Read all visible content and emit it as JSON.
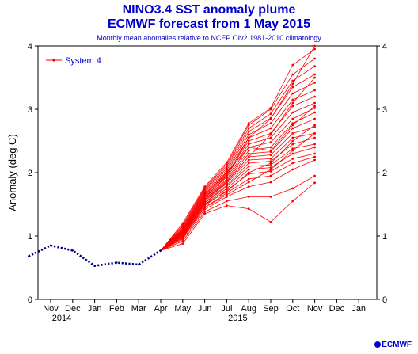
{
  "header": {
    "title": "NINO3.4 SST anomaly plume",
    "subtitle_forecast": "ECMWF forecast from 1 May 2015",
    "note": "Monthly mean anomalies relative to NCEP OIv2 1981-2010 climatology"
  },
  "logo": {
    "text": "ECMWF"
  },
  "colors": {
    "title": "#0000cc",
    "forecast": "#ff0000",
    "observed": "#000080"
  },
  "chart_data": {
    "type": "line",
    "title": "NINO3.4 SST anomaly plume",
    "ylabel": "Anomaly (deg C)",
    "xlabel": "",
    "ylim": [
      0,
      4
    ],
    "y_ticks": [
      0,
      1,
      2,
      3,
      4
    ],
    "grid": false,
    "legend_position": "top-left",
    "x_ticks": [
      "Nov",
      "Dec",
      "Jan",
      "Feb",
      "Mar",
      "Apr",
      "May",
      "Jun",
      "Jul",
      "Aug",
      "Sep",
      "Oct",
      "Nov",
      "Dec",
      "Jan"
    ],
    "x_years": [
      {
        "label": "2014",
        "at": "Nov 2014"
      },
      {
        "label": "2015",
        "at": "Jul 2015"
      }
    ],
    "observed": {
      "x": [
        "Oct 2014",
        "Nov 2014",
        "Dec 2014",
        "Jan 2015",
        "Feb 2015",
        "Mar 2015",
        "Apr 2015"
      ],
      "values": [
        0.68,
        0.85,
        0.77,
        0.53,
        0.58,
        0.55,
        0.77
      ]
    },
    "forecast": {
      "name": "System 4",
      "x": [
        "Apr 2015",
        "May 2015",
        "Jun 2015",
        "Jul 2015",
        "Aug 2015",
        "Sep 2015",
        "Oct 2015",
        "Nov 2015"
      ],
      "members": [
        [
          0.77,
          0.88,
          1.35,
          1.48,
          1.43,
          1.22,
          1.55,
          1.84
        ],
        [
          0.77,
          0.92,
          1.38,
          1.55,
          1.62,
          1.62,
          1.75,
          1.95
        ],
        [
          0.77,
          0.95,
          1.42,
          1.62,
          1.78,
          1.85,
          2.05,
          2.2
        ],
        [
          0.77,
          0.97,
          1.45,
          1.68,
          1.9,
          1.95,
          2.15,
          2.25
        ],
        [
          0.77,
          0.98,
          1.48,
          1.72,
          1.98,
          2.02,
          2.22,
          2.3
        ],
        [
          0.77,
          1.0,
          1.5,
          1.75,
          2.05,
          2.08,
          2.3,
          2.4
        ],
        [
          0.77,
          1.01,
          1.52,
          1.78,
          2.1,
          2.12,
          2.38,
          2.45
        ],
        [
          0.77,
          1.02,
          1.53,
          1.8,
          2.15,
          2.18,
          2.45,
          2.55
        ],
        [
          0.77,
          1.03,
          1.55,
          1.83,
          2.2,
          2.22,
          2.55,
          2.62
        ],
        [
          0.77,
          1.04,
          1.57,
          1.86,
          2.25,
          2.28,
          2.62,
          2.72
        ],
        [
          0.77,
          1.05,
          1.58,
          1.88,
          2.3,
          2.33,
          2.7,
          2.85
        ],
        [
          0.77,
          1.06,
          1.6,
          1.9,
          2.35,
          2.4,
          2.78,
          2.95
        ],
        [
          0.77,
          1.07,
          1.62,
          1.93,
          2.4,
          2.48,
          2.85,
          3.02
        ],
        [
          0.77,
          1.08,
          1.64,
          1.96,
          2.45,
          2.55,
          2.95,
          3.1
        ],
        [
          0.77,
          1.09,
          1.66,
          1.98,
          2.5,
          2.62,
          3.05,
          3.2
        ],
        [
          0.77,
          1.1,
          1.68,
          2.01,
          2.55,
          2.7,
          3.15,
          3.3
        ],
        [
          0.77,
          1.11,
          1.7,
          2.04,
          2.6,
          2.78,
          3.25,
          3.42
        ],
        [
          0.77,
          1.13,
          1.72,
          2.07,
          2.65,
          2.86,
          3.35,
          3.55
        ],
        [
          0.77,
          1.15,
          1.74,
          2.1,
          2.7,
          2.93,
          3.45,
          3.68
        ],
        [
          0.77,
          1.17,
          1.76,
          2.13,
          2.75,
          3.0,
          3.55,
          3.8
        ],
        [
          0.77,
          1.2,
          1.78,
          2.16,
          2.78,
          3.02,
          3.7,
          3.95
        ],
        [
          0.77,
          1.0,
          1.6,
          1.95,
          2.55,
          2.85,
          3.4,
          4.0
        ],
        [
          0.77,
          0.98,
          1.55,
          1.85,
          2.25,
          2.6,
          3.1,
          3.5
        ],
        [
          0.77,
          1.02,
          1.65,
          2.0,
          2.4,
          2.35,
          2.75,
          3.05
        ],
        [
          0.77,
          1.05,
          1.5,
          1.7,
          2.0,
          2.15,
          2.5,
          2.75
        ],
        [
          0.77,
          1.0,
          1.45,
          1.65,
          1.85,
          2.05,
          2.35,
          2.62
        ]
      ]
    }
  }
}
